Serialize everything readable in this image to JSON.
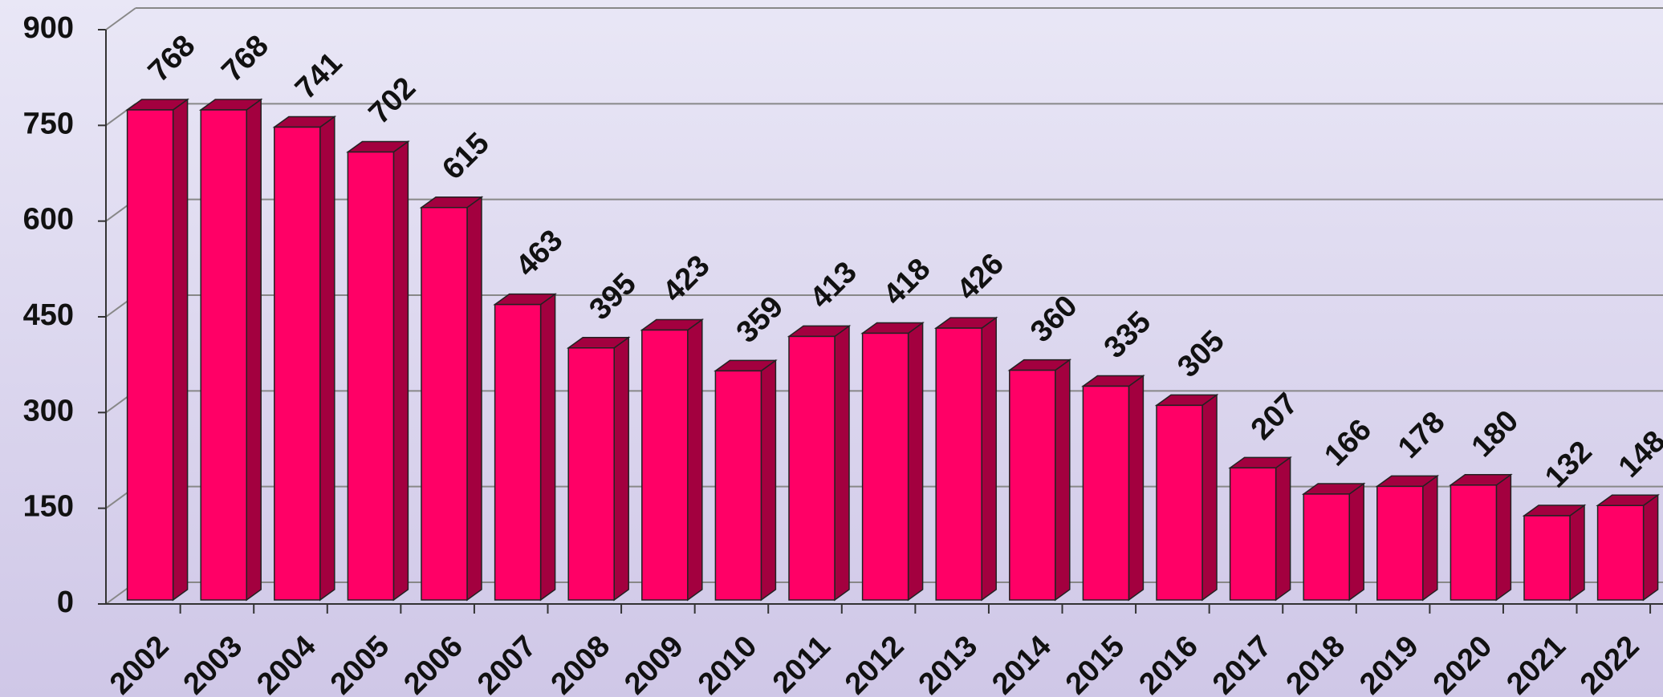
{
  "chart_data": {
    "type": "bar",
    "categories": [
      "2002",
      "2003",
      "2004",
      "2005",
      "2006",
      "2007",
      "2008",
      "2009",
      "2010",
      "2011",
      "2012",
      "2013",
      "2014",
      "2015",
      "2016",
      "2017",
      "2018",
      "2019",
      "2020",
      "2021",
      "2022"
    ],
    "values": [
      768,
      768,
      741,
      702,
      615,
      463,
      395,
      423,
      359,
      413,
      418,
      426,
      360,
      335,
      305,
      207,
      166,
      178,
      180,
      132,
      148
    ],
    "color": "#ff0066",
    "side_color": "#a3003f",
    "ylim": [
      0,
      900
    ],
    "yticks": [
      0,
      150,
      300,
      450,
      600,
      750,
      900
    ],
    "grid": true
  }
}
